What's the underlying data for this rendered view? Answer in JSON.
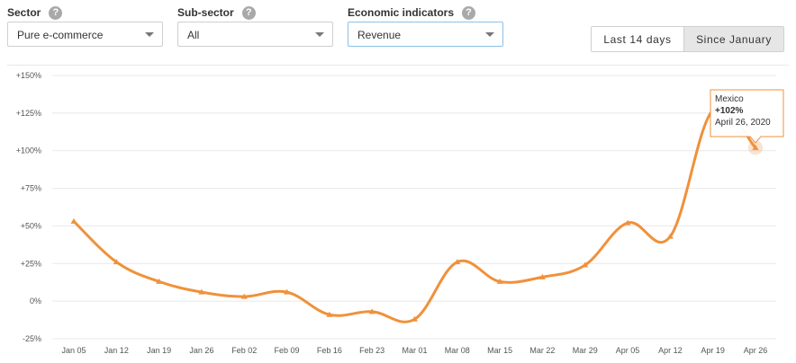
{
  "filters": {
    "sector": {
      "label": "Sector",
      "value": "Pure e-commerce"
    },
    "subsector": {
      "label": "Sub-sector",
      "value": "All"
    },
    "indicator": {
      "label": "Economic indicators",
      "value": "Revenue"
    },
    "help_glyph": "?"
  },
  "range": {
    "options": [
      "Last 14 days",
      "Since January"
    ],
    "selected": "Since January"
  },
  "tooltip": {
    "country": "Mexico",
    "value": "+102%",
    "date": "April 26, 2020"
  },
  "colors": {
    "line": "#f0913a",
    "tooltip_border": "#f0913a",
    "grid": "#e8e8e8"
  },
  "chart_data": {
    "type": "line",
    "x": [
      "Jan 05",
      "Jan 12",
      "Jan 19",
      "Jan 26",
      "Feb 02",
      "Feb 09",
      "Feb 16",
      "Feb 23",
      "Mar 01",
      "Mar 08",
      "Mar 15",
      "Mar 22",
      "Mar 29",
      "Apr 05",
      "Apr 12",
      "Apr 19",
      "Apr 26"
    ],
    "series": [
      {
        "name": "Mexico",
        "values": [
          53,
          26,
          13,
          6,
          3,
          6,
          -9,
          -7,
          -12,
          26,
          13,
          16,
          24,
          52,
          43,
          127,
          102
        ]
      }
    ],
    "yticks": [
      "-25%",
      "0%",
      "+25%",
      "+50%",
      "+75%",
      "+100%",
      "+125%",
      "+150%"
    ],
    "ylim": [
      -25,
      150
    ],
    "grid": true,
    "highlighted_point": "Apr 26"
  }
}
